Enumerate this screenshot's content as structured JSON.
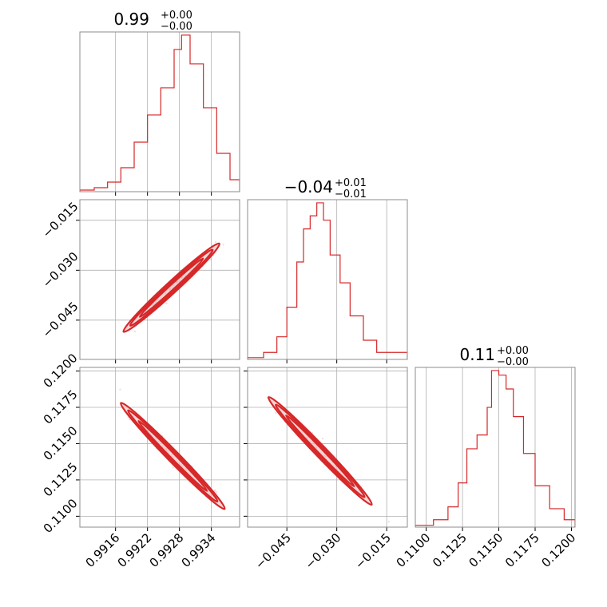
{
  "colors": {
    "primary": "#d62728",
    "contour_fill": "#f2c4c4",
    "grid": "#b0b0b0"
  },
  "chart_data": {
    "type": "corner",
    "titles": [
      {
        "value": "0.99",
        "upper": "+0.00",
        "lower": "−0.00"
      },
      {
        "value": "−0.04",
        "upper": "+0.01",
        "lower": "−0.01"
      },
      {
        "value": "0.11",
        "upper": "+0.00",
        "lower": "−0.00"
      }
    ],
    "axes": {
      "x1": {
        "range": [
          0.99093,
          0.99393
        ],
        "ticks": [
          0.9916,
          0.9922,
          0.9928,
          0.9934
        ],
        "tick_labels": [
          "0.9916",
          "0.9922",
          "0.9928",
          "0.9934"
        ]
      },
      "x2": {
        "range": [
          -0.0568,
          -0.0088
        ],
        "ticks": [
          -0.045,
          -0.03,
          -0.015
        ],
        "tick_labels": [
          "−0.045",
          "−0.030",
          "−0.015"
        ]
      },
      "x3": {
        "range": [
          0.10925,
          0.12025
        ],
        "ticks": [
          0.11,
          0.1125,
          0.115,
          0.1175,
          0.12
        ],
        "tick_labels": [
          "0.1100",
          "0.1125",
          "0.1150",
          "0.1175",
          "0.1200"
        ]
      },
      "y2": {
        "range": [
          -0.0568,
          -0.0088
        ],
        "ticks": [
          -0.015,
          -0.03,
          -0.045
        ],
        "tick_labels": [
          "−0.015",
          "−0.030",
          "−0.045"
        ]
      },
      "y3": {
        "range": [
          0.10925,
          0.12025
        ],
        "ticks": [
          0.12,
          0.1175,
          0.115,
          0.1125,
          0.11
        ],
        "tick_labels": [
          "0.1200",
          "0.1175",
          "0.1150",
          "0.1125",
          "0.1100"
        ]
      }
    },
    "hist1": {
      "x": [
        0.99093,
        0.9912,
        0.99145,
        0.9917,
        0.99195,
        0.9922,
        0.99245,
        0.9927,
        0.99284,
        0.993,
        0.99325,
        0.9935,
        0.99375,
        0.99393
      ],
      "y": [
        2,
        5,
        12,
        30,
        62,
        96,
        130,
        178,
        196,
        160,
        105,
        48,
        15,
        2
      ]
    },
    "hist2": {
      "x": [
        -0.0568,
        -0.052,
        -0.048,
        -0.045,
        -0.042,
        -0.04,
        -0.038,
        -0.036,
        -0.034,
        -0.032,
        -0.029,
        -0.026,
        -0.022,
        -0.018,
        -0.0088
      ],
      "y": [
        2,
        8,
        26,
        60,
        112,
        150,
        165,
        180,
        160,
        120,
        88,
        50,
        22,
        8,
        2
      ]
    },
    "hist3": {
      "x": [
        0.10925,
        0.1105,
        0.1115,
        0.1122,
        0.1128,
        0.1135,
        0.1142,
        0.1145,
        0.115,
        0.1155,
        0.116,
        0.1167,
        0.1175,
        0.1185,
        0.1195,
        0.12025
      ],
      "y": [
        2,
        8,
        22,
        48,
        85,
        100,
        130,
        170,
        165,
        150,
        120,
        80,
        45,
        20,
        8,
        2
      ]
    },
    "corr_12": {
      "start": [
        0.99175,
        -0.0485
      ],
      "end": [
        0.99355,
        -0.022
      ]
    },
    "corr_13": {
      "start": [
        0.9917,
        0.1178
      ],
      "end": [
        0.99365,
        0.1105
      ]
    },
    "corr_23": {
      "start": [
        -0.0505,
        0.1182
      ],
      "end": [
        -0.0195,
        0.1108
      ]
    }
  }
}
